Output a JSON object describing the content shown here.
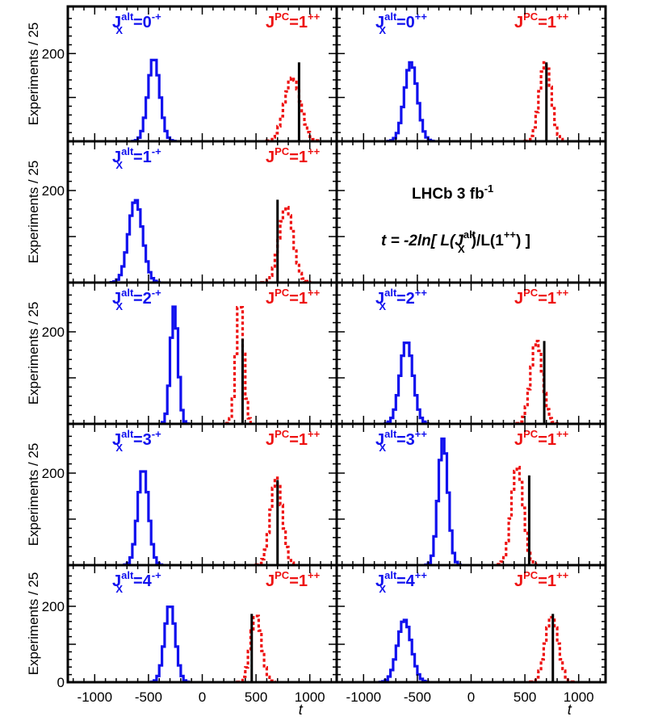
{
  "figure": {
    "y_axis_label": "Experiments / 25",
    "x_axis_label": "t",
    "annotation_line1": "LHCb 3 fb",
    "annotation_line1_sup": "-1",
    "annotation_line2": "t = -2ln[ L(J",
    "annotation_line2_sup": "alt",
    "annotation_line2_sub": "X",
    "annotation_line2_mid": ")/L(1",
    "annotation_line2_sup2": "++",
    "annotation_line2_end": ") ]"
  },
  "colors": {
    "alt": "#1010ee",
    "pc": "#ee1111",
    "observed": "#000000",
    "frame": "#000000"
  },
  "chart_data": {
    "type": "histogram",
    "xlim": [
      -1250,
      1250
    ],
    "ylim": [
      0,
      300
    ],
    "bin_width": 25,
    "x_ticks": [
      -1000,
      -500,
      0,
      500,
      1000
    ],
    "x_tick_labels": [
      "-1000",
      "-500",
      "0",
      "500",
      "1000"
    ],
    "y_ticks": [
      200
    ],
    "y_tick_labels": [
      "200"
    ],
    "bottom_y_tick_labels": [
      "0",
      "200"
    ],
    "panels": [
      {
        "row": 0,
        "col": 0,
        "alt_label": "J",
        "alt_sup": "alt",
        "alt_sub": "X",
        "alt_state": "=0",
        "alt_state_sup": "-+",
        "pc_label": "J",
        "pc_sup": "PC",
        "pc_state": "=1",
        "pc_state_sup": "++",
        "alt_mean": -450,
        "alt_peak": 190,
        "alt_sigma": 55,
        "pc_mean": 840,
        "pc_peak": 145,
        "pc_sigma": 75,
        "observed_t": 900,
        "observed_height": 180
      },
      {
        "row": 0,
        "col": 1,
        "alt_label": "J",
        "alt_sup": "alt",
        "alt_sub": "X",
        "alt_state": "=0",
        "alt_state_sup": "++",
        "pc_label": "J",
        "pc_sup": "PC",
        "pc_state": "=1",
        "pc_state_sup": "++",
        "alt_mean": -560,
        "alt_peak": 180,
        "alt_sigma": 60,
        "pc_mean": 690,
        "pc_peak": 180,
        "pc_sigma": 55,
        "observed_t": 700,
        "observed_height": 180
      },
      {
        "row": 1,
        "col": 0,
        "alt_label": "J",
        "alt_sup": "alt",
        "alt_sub": "X",
        "alt_state": "=1",
        "alt_state_sup": "-+",
        "pc_label": "J",
        "pc_sup": "PC",
        "pc_state": "=1",
        "pc_state_sup": "++",
        "alt_mean": -620,
        "alt_peak": 180,
        "alt_sigma": 65,
        "pc_mean": 780,
        "pc_peak": 165,
        "pc_sigma": 65,
        "observed_t": 700,
        "observed_height": 180
      },
      {
        "row": 2,
        "col": 0,
        "alt_label": "J",
        "alt_sup": "alt",
        "alt_sub": "X",
        "alt_state": "=2",
        "alt_state_sup": "-+",
        "pc_label": "J",
        "pc_sup": "PC",
        "pc_state": "=1",
        "pc_state_sup": "++",
        "alt_mean": -260,
        "alt_peak": 255,
        "alt_sigma": 35,
        "pc_mean": 350,
        "pc_peak": 270,
        "pc_sigma": 35,
        "observed_t": 375,
        "observed_height": 185
      },
      {
        "row": 2,
        "col": 1,
        "alt_label": "J",
        "alt_sup": "alt",
        "alt_sub": "X",
        "alt_state": "=2",
        "alt_state_sup": "++",
        "pc_label": "J",
        "pc_sup": "PC",
        "pc_state": "=1",
        "pc_state_sup": "++",
        "alt_mean": -600,
        "alt_peak": 180,
        "alt_sigma": 60,
        "pc_mean": 610,
        "pc_peak": 180,
        "pc_sigma": 55,
        "observed_t": 680,
        "observed_height": 180
      },
      {
        "row": 3,
        "col": 0,
        "alt_label": "J",
        "alt_sup": "alt",
        "alt_sub": "X",
        "alt_state": "=3",
        "alt_state_sup": "-+",
        "pc_label": "J",
        "pc_sup": "PC",
        "pc_state": "=1",
        "pc_state_sup": "++",
        "alt_mean": -550,
        "alt_peak": 210,
        "alt_sigma": 50,
        "pc_mean": 690,
        "pc_peak": 190,
        "pc_sigma": 55,
        "observed_t": 700,
        "observed_height": 185
      },
      {
        "row": 3,
        "col": 1,
        "alt_label": "J",
        "alt_sup": "alt",
        "alt_sub": "X",
        "alt_state": "=3",
        "alt_state_sup": "++",
        "pc_label": "J",
        "pc_sup": "PC",
        "pc_state": "=1",
        "pc_state_sup": "++",
        "alt_mean": -260,
        "alt_peak": 275,
        "alt_sigma": 45,
        "pc_mean": 430,
        "pc_peak": 215,
        "pc_sigma": 55,
        "observed_t": 540,
        "observed_height": 195
      },
      {
        "row": 4,
        "col": 0,
        "alt_label": "J",
        "alt_sup": "alt",
        "alt_sub": "X",
        "alt_state": "=4",
        "alt_state_sup": "-+",
        "pc_label": "J",
        "pc_sup": "PC",
        "pc_state": "=1",
        "pc_state_sup": "++",
        "alt_mean": -300,
        "alt_peak": 205,
        "alt_sigma": 50,
        "pc_mean": 500,
        "pc_peak": 180,
        "pc_sigma": 50,
        "observed_t": 460,
        "observed_height": 180
      },
      {
        "row": 4,
        "col": 1,
        "alt_label": "J",
        "alt_sup": "alt",
        "alt_sub": "X",
        "alt_state": "=4",
        "alt_state_sup": "++",
        "pc_label": "J",
        "pc_sup": "PC",
        "pc_state": "=1",
        "pc_state_sup": "++",
        "alt_mean": -620,
        "alt_peak": 165,
        "alt_sigma": 65,
        "pc_mean": 750,
        "pc_peak": 175,
        "pc_sigma": 60,
        "observed_t": 760,
        "observed_height": 180
      }
    ]
  }
}
